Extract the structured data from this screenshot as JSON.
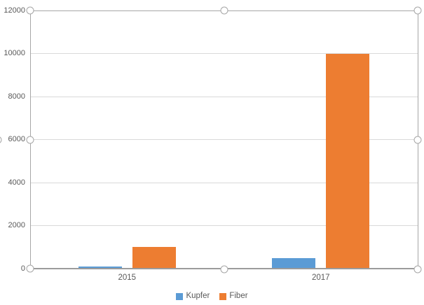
{
  "chart_data": {
    "type": "bar",
    "title": "",
    "xlabel": "",
    "ylabel": "",
    "categories": [
      "2015",
      "2017"
    ],
    "series": [
      {
        "name": "Kupfer",
        "color": "#5B9BD5",
        "values": [
          100,
          500
        ]
      },
      {
        "name": "Fiber",
        "color": "#ED7D31",
        "values": [
          1000,
          10000
        ]
      }
    ],
    "ylim": [
      0,
      12000
    ],
    "yticks": [
      "0",
      "2000",
      "4000",
      "6000",
      "8000",
      "10000",
      "12000"
    ],
    "grid": true,
    "legend_position": "bottom"
  },
  "ui": {
    "colors": {
      "kupfer": "#5B9BD5",
      "fiber": "#ED7D31",
      "gridline": "#D9D9D9",
      "axis_line": "#9B9B9B",
      "selection_border": "#A6A6A6",
      "handle_stroke": "#A6A6A6",
      "axis_text": "#595959",
      "background": "#FFFFFF"
    },
    "selection": {
      "selected": true,
      "handle_count": 9
    }
  }
}
